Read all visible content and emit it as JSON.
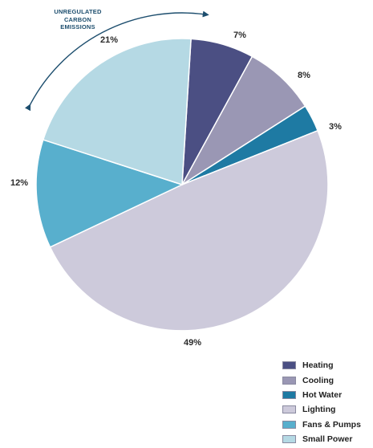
{
  "chart_data": {
    "type": "pie",
    "title": "",
    "annotation": {
      "lines": [
        "UNREGULATED",
        "CARBON",
        "EMISSIONS"
      ]
    },
    "slices": [
      {
        "label": "Heating",
        "value": 7,
        "value_label": "7%",
        "color": "#4b4f83"
      },
      {
        "label": "Cooling",
        "value": 8,
        "value_label": "8%",
        "color": "#9a97b4"
      },
      {
        "label": "Hot Water",
        "value": 3,
        "value_label": "3%",
        "color": "#1e7aa3"
      },
      {
        "label": "Lighting",
        "value": 49,
        "value_label": "49%",
        "color": "#cdcadb"
      },
      {
        "label": "Fans & Pumps",
        "value": 12,
        "value_label": "12%",
        "color": "#58afcd"
      },
      {
        "label": "Small Power",
        "value": 21,
        "value_label": "21%",
        "color": "#b5d9e4"
      }
    ],
    "legend_position": "bottom-right"
  }
}
